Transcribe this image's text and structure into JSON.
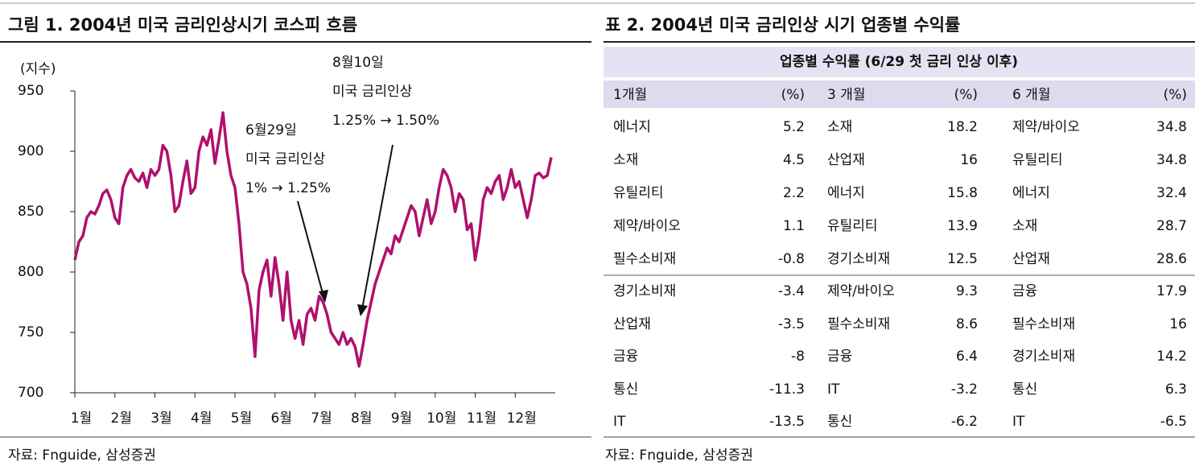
{
  "figure": {
    "title": "그림 1. 2004년 미국 금리인상시기 코스피 흐름",
    "source": "자료: Fnguide, 삼성증권"
  },
  "chart_data": {
    "type": "line",
    "y_label": "(지수)",
    "x": [
      1.0,
      1.1,
      1.2,
      1.3,
      1.4,
      1.5,
      1.6,
      1.7,
      1.8,
      1.9,
      2.0,
      2.1,
      2.2,
      2.3,
      2.4,
      2.5,
      2.6,
      2.7,
      2.8,
      2.9,
      3.0,
      3.1,
      3.2,
      3.3,
      3.4,
      3.5,
      3.6,
      3.7,
      3.8,
      3.9,
      4.0,
      4.1,
      4.2,
      4.3,
      4.4,
      4.5,
      4.6,
      4.7,
      4.8,
      4.9,
      5.0,
      5.1,
      5.2,
      5.3,
      5.4,
      5.5,
      5.6,
      5.7,
      5.8,
      5.9,
      6.0,
      6.1,
      6.2,
      6.3,
      6.4,
      6.5,
      6.6,
      6.7,
      6.8,
      6.9,
      7.0,
      7.1,
      7.2,
      7.3,
      7.4,
      7.5,
      7.6,
      7.7,
      7.8,
      7.9,
      8.0,
      8.1,
      8.2,
      8.3,
      8.4,
      8.5,
      8.6,
      8.7,
      8.8,
      8.9,
      9.0,
      9.1,
      9.2,
      9.3,
      9.4,
      9.5,
      9.6,
      9.7,
      9.8,
      9.9,
      10.0,
      10.1,
      10.2,
      10.3,
      10.4,
      10.5,
      10.6,
      10.7,
      10.8,
      10.9,
      11.0,
      11.1,
      11.2,
      11.3,
      11.4,
      11.5,
      11.6,
      11.7,
      11.8,
      11.9,
      12.0,
      12.1,
      12.2,
      12.3,
      12.4,
      12.5,
      12.6,
      12.7,
      12.8,
      12.9
    ],
    "series": [
      {
        "name": "코스피",
        "color": "#b0106e",
        "values": [
          810,
          825,
          830,
          845,
          850,
          848,
          855,
          865,
          868,
          860,
          845,
          840,
          870,
          880,
          885,
          878,
          875,
          882,
          870,
          885,
          880,
          885,
          905,
          900,
          880,
          850,
          855,
          875,
          892,
          865,
          870,
          900,
          912,
          905,
          918,
          890,
          910,
          932,
          900,
          880,
          870,
          840,
          800,
          790,
          770,
          730,
          785,
          800,
          810,
          780,
          812,
          790,
          760,
          800,
          760,
          745,
          760,
          740,
          765,
          770,
          760,
          780,
          775,
          765,
          750,
          745,
          740,
          750,
          740,
          745,
          738,
          722,
          740,
          760,
          775,
          790,
          800,
          810,
          820,
          815,
          830,
          825,
          835,
          845,
          855,
          850,
          830,
          845,
          860,
          840,
          850,
          870,
          885,
          880,
          870,
          850,
          865,
          860,
          835,
          840,
          810,
          830,
          860,
          870,
          865,
          875,
          880,
          860,
          870,
          885,
          870,
          875,
          860,
          845,
          860,
          880,
          882,
          878,
          880,
          895
        ]
      }
    ],
    "xlim": [
      1,
      13
    ],
    "xticks": [
      {
        "value": 1,
        "label": "1월"
      },
      {
        "value": 2,
        "label": "2월"
      },
      {
        "value": 3,
        "label": "3월"
      },
      {
        "value": 4,
        "label": "4월"
      },
      {
        "value": 5,
        "label": "5월"
      },
      {
        "value": 6,
        "label": "6월"
      },
      {
        "value": 7,
        "label": "7월"
      },
      {
        "value": 8,
        "label": "8월"
      },
      {
        "value": 9,
        "label": "9월"
      },
      {
        "value": 10,
        "label": "10월"
      },
      {
        "value": 11,
        "label": "11월"
      },
      {
        "value": 12,
        "label": "12월"
      }
    ],
    "ylim": [
      700,
      950
    ],
    "yticks": [
      700,
      750,
      800,
      850,
      900,
      950
    ],
    "annotations": [
      {
        "text": [
          "6월29일",
          "미국 금리인상",
          "1% → 1.25%"
        ]
      },
      {
        "text": [
          "8월10일",
          "미국 금리인상",
          "1.25% → 1.50%"
        ]
      }
    ]
  },
  "table": {
    "title": "표 2. 2004년 미국 금리인상 시기 업종별 수익률",
    "source": "자료: Fnguide, 삼성증권",
    "header": "업종별 수익률 (6/29 첫 금리 인상 이후)",
    "columns": [
      "1개월",
      "(%)",
      "3 개월",
      "(%)",
      "6 개월",
      "(%)"
    ],
    "rows": [
      [
        "에너지",
        5.2,
        "소재",
        18.2,
        "제약/바이오",
        34.8
      ],
      [
        "소재",
        4.5,
        "산업재",
        16.0,
        "유틸리티",
        34.8
      ],
      [
        "유틸리티",
        2.2,
        "에너지",
        15.8,
        "에너지",
        32.4
      ],
      [
        "제약/바이오",
        1.1,
        "유틸리티",
        13.9,
        "소재",
        28.7
      ],
      [
        "필수소비재",
        -0.8,
        "경기소비재",
        12.5,
        "산업재",
        28.6
      ],
      [
        "경기소비재",
        -3.4,
        "제약/바이오",
        9.3,
        "금융",
        17.9
      ],
      [
        "산업재",
        -3.5,
        "필수소비재",
        8.6,
        "필수소비재",
        16.0
      ],
      [
        "금융",
        -8.0,
        "금융",
        6.4,
        "경기소비재",
        14.2
      ],
      [
        "통신",
        -11.3,
        "IT",
        -3.2,
        "통신",
        6.3
      ],
      [
        "IT",
        -13.5,
        "통신",
        -6.2,
        "IT",
        -6.5
      ]
    ]
  }
}
